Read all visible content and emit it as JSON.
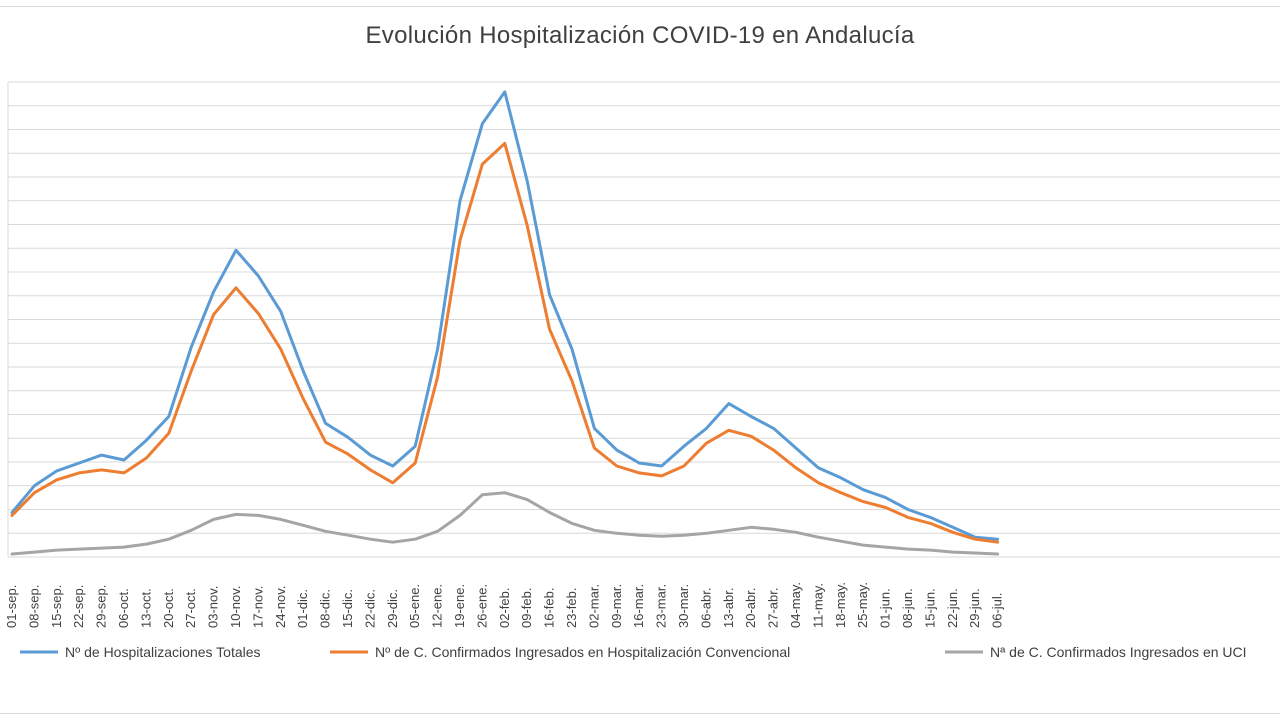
{
  "chart_data": {
    "type": "line",
    "title": "Evolución Hospitalización COVID-19 en Andalucía",
    "xlabel": "",
    "ylabel": "",
    "grid": true,
    "legend_position": "bottom",
    "y_tick_labels_shown": false,
    "categories": [
      "01-sep.",
      "08-sep.",
      "15-sep.",
      "22-sep.",
      "29-sep.",
      "06-oct.",
      "13-oct.",
      "20-oct.",
      "27-oct.",
      "03-nov.",
      "10-nov.",
      "17-nov.",
      "24-nov.",
      "01-dic.",
      "08-dic.",
      "15-dic.",
      "22-dic.",
      "29-dic.",
      "05-ene.",
      "12-ene.",
      "19-ene.",
      "26-ene.",
      "02-feb.",
      "09-feb.",
      "16-feb.",
      "23-feb.",
      "02-mar.",
      "09-mar.",
      "16-mar.",
      "23-mar.",
      "30-mar.",
      "06-abr.",
      "13-abr.",
      "20-abr.",
      "27-abr.",
      "04-may.",
      "11-may.",
      "18-may.",
      "25-may.",
      "01-jun.",
      "08-jun.",
      "15-jun.",
      "22-jun.",
      "29-jun.",
      "06-jul."
    ],
    "series": [
      {
        "name": "Nº de Hospitalizaciones Totales",
        "color": "#5b9bd5",
        "values": [
          45,
          72,
          87,
          95,
          103,
          98,
          118,
          142,
          212,
          268,
          310,
          284,
          248,
          188,
          135,
          121,
          103,
          92,
          112,
          210,
          360,
          438,
          470,
          380,
          265,
          210,
          130,
          108,
          95,
          92,
          112,
          130,
          155,
          142,
          130,
          110,
          90,
          80,
          68,
          60,
          48,
          40,
          30,
          20,
          18
        ]
      },
      {
        "name": "Nº de C. Confirmados Ingresados en Hospitalización Convencional",
        "color": "#ed7d31",
        "values": [
          42,
          65,
          78,
          85,
          88,
          85,
          100,
          125,
          188,
          245,
          272,
          246,
          210,
          160,
          116,
          104,
          88,
          75,
          95,
          182,
          320,
          397,
          418,
          335,
          230,
          178,
          110,
          92,
          85,
          82,
          92,
          115,
          128,
          122,
          108,
          90,
          75,
          65,
          56,
          50,
          40,
          34,
          25,
          18,
          15
        ]
      },
      {
        "name": "Nª de C. Confirmados Ingresados en UCI",
        "color": "#a5a5a5",
        "values": [
          3,
          5,
          7,
          8,
          9,
          10,
          13,
          18,
          27,
          38,
          43,
          42,
          38,
          32,
          26,
          22,
          18,
          15,
          18,
          26,
          42,
          63,
          65,
          58,
          45,
          34,
          27,
          24,
          22,
          21,
          22,
          24,
          27,
          30,
          28,
          25,
          20,
          16,
          12,
          10,
          8,
          7,
          5,
          4,
          3
        ]
      }
    ]
  }
}
